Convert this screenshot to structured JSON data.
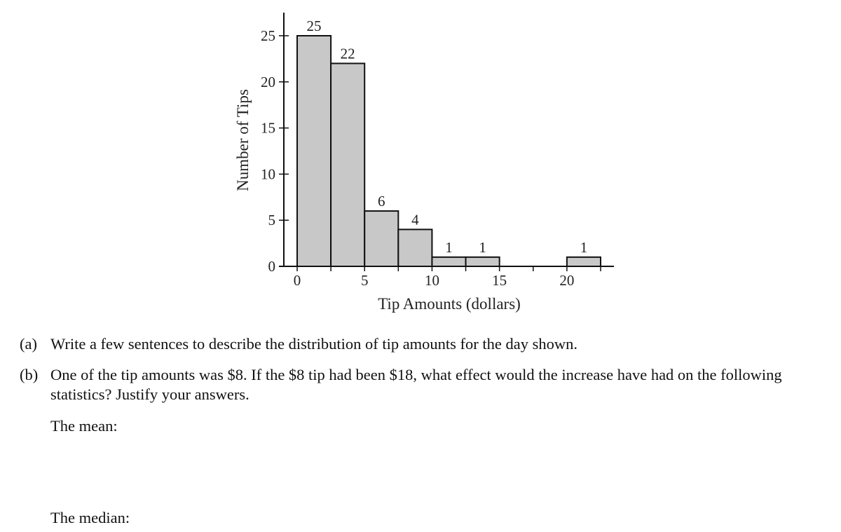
{
  "chart_data": {
    "type": "histogram",
    "title": "",
    "xlabel": "Tip Amounts (dollars)",
    "ylabel": "Number of Tips",
    "bin_width": 2.5,
    "bins": [
      {
        "start": 0,
        "end": 2.5,
        "count": 25
      },
      {
        "start": 2.5,
        "end": 5,
        "count": 22
      },
      {
        "start": 5,
        "end": 7.5,
        "count": 6
      },
      {
        "start": 7.5,
        "end": 10,
        "count": 4
      },
      {
        "start": 10,
        "end": 12.5,
        "count": 1
      },
      {
        "start": 12.5,
        "end": 15,
        "count": 1
      },
      {
        "start": 15,
        "end": 17.5,
        "count": 0
      },
      {
        "start": 17.5,
        "end": 20,
        "count": 0
      },
      {
        "start": 20,
        "end": 22.5,
        "count": 1
      }
    ],
    "xlim": [
      0,
      22.5
    ],
    "ylim": [
      0,
      27
    ],
    "x_ticks": [
      "0",
      "5",
      "10",
      "15",
      "20"
    ],
    "y_ticks": [
      "0",
      "5",
      "10",
      "15",
      "20",
      "25"
    ],
    "grid": false,
    "bar_color": "#c8c8c8"
  },
  "questions": {
    "a": {
      "letter": "(a)",
      "text": "Write a few sentences to describe the distribution of tip amounts for the day shown."
    },
    "b": {
      "letter": "(b)",
      "text": "One of the tip amounts was $8. If the $8 tip had been $18, what effect would the increase have had on the following statistics? Justify your answers."
    },
    "mean_label": "The mean:",
    "median_label": "The median:"
  }
}
